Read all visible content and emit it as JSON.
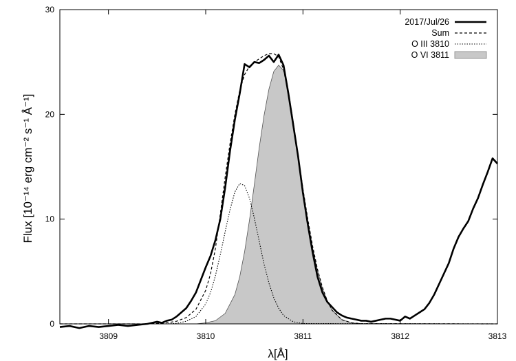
{
  "chart_data": {
    "type": "line",
    "xlabel": "λ[Å]",
    "ylabel": "Flux [10⁻¹⁴ erg cm⁻² s⁻¹ Å⁻¹]",
    "xlim": [
      3808.5,
      3813
    ],
    "ylim": [
      0,
      30
    ],
    "x_ticks": [
      3809,
      3810,
      3811,
      3812,
      3813
    ],
    "y_ticks": [
      0,
      10,
      20,
      30
    ],
    "grid": false,
    "legend_position": "top-right",
    "series": [
      {
        "name": "2017/Jul/26",
        "style": "solid-thick",
        "color": "#000000",
        "points": [
          [
            3808.5,
            -0.3
          ],
          [
            3808.6,
            -0.2
          ],
          [
            3808.7,
            -0.4
          ],
          [
            3808.8,
            -0.2
          ],
          [
            3808.9,
            -0.3
          ],
          [
            3809.0,
            -0.2
          ],
          [
            3809.1,
            -0.1
          ],
          [
            3809.2,
            -0.2
          ],
          [
            3809.3,
            -0.1
          ],
          [
            3809.4,
            0.0
          ],
          [
            3809.5,
            0.2
          ],
          [
            3809.55,
            0.1
          ],
          [
            3809.6,
            0.3
          ],
          [
            3809.65,
            0.4
          ],
          [
            3809.7,
            0.7
          ],
          [
            3809.75,
            1.1
          ],
          [
            3809.8,
            1.5
          ],
          [
            3809.85,
            2.2
          ],
          [
            3809.9,
            3.0
          ],
          [
            3809.95,
            4.2
          ],
          [
            3810.0,
            5.4
          ],
          [
            3810.05,
            6.5
          ],
          [
            3810.1,
            8.0
          ],
          [
            3810.15,
            10.0
          ],
          [
            3810.2,
            13.0
          ],
          [
            3810.25,
            16.5
          ],
          [
            3810.3,
            19.5
          ],
          [
            3810.35,
            22.0
          ],
          [
            3810.4,
            24.8
          ],
          [
            3810.45,
            24.5
          ],
          [
            3810.5,
            25.0
          ],
          [
            3810.55,
            24.9
          ],
          [
            3810.6,
            25.2
          ],
          [
            3810.65,
            25.6
          ],
          [
            3810.7,
            25.0
          ],
          [
            3810.75,
            25.7
          ],
          [
            3810.8,
            24.7
          ],
          [
            3810.85,
            22.0
          ],
          [
            3810.9,
            19.0
          ],
          [
            3810.95,
            16.0
          ],
          [
            3811.0,
            12.5
          ],
          [
            3811.05,
            9.5
          ],
          [
            3811.1,
            6.8
          ],
          [
            3811.15,
            4.5
          ],
          [
            3811.2,
            3.0
          ],
          [
            3811.25,
            2.1
          ],
          [
            3811.3,
            1.6
          ],
          [
            3811.35,
            1.1
          ],
          [
            3811.4,
            0.8
          ],
          [
            3811.45,
            0.6
          ],
          [
            3811.5,
            0.5
          ],
          [
            3811.55,
            0.4
          ],
          [
            3811.6,
            0.3
          ],
          [
            3811.65,
            0.3
          ],
          [
            3811.7,
            0.2
          ],
          [
            3811.75,
            0.3
          ],
          [
            3811.8,
            0.4
          ],
          [
            3811.85,
            0.5
          ],
          [
            3811.9,
            0.5
          ],
          [
            3811.95,
            0.4
          ],
          [
            3812.0,
            0.3
          ],
          [
            3812.05,
            0.7
          ],
          [
            3812.1,
            0.5
          ],
          [
            3812.15,
            0.8
          ],
          [
            3812.2,
            1.1
          ],
          [
            3812.25,
            1.4
          ],
          [
            3812.3,
            2.0
          ],
          [
            3812.35,
            2.8
          ],
          [
            3812.4,
            3.8
          ],
          [
            3812.45,
            4.8
          ],
          [
            3812.5,
            5.8
          ],
          [
            3812.55,
            7.2
          ],
          [
            3812.6,
            8.3
          ],
          [
            3812.65,
            9.1
          ],
          [
            3812.7,
            9.8
          ],
          [
            3812.75,
            11.0
          ],
          [
            3812.8,
            12.0
          ],
          [
            3812.85,
            13.3
          ],
          [
            3812.9,
            14.5
          ],
          [
            3812.95,
            15.8
          ],
          [
            3813.0,
            15.3
          ]
        ]
      },
      {
        "name": "Sum",
        "style": "dashed",
        "color": "#000000",
        "points": [
          [
            3808.5,
            0
          ],
          [
            3809.4,
            0
          ],
          [
            3809.5,
            0.05
          ],
          [
            3809.6,
            0.1
          ],
          [
            3809.7,
            0.25
          ],
          [
            3809.8,
            0.6
          ],
          [
            3809.9,
            1.4
          ],
          [
            3810.0,
            3.2
          ],
          [
            3810.05,
            4.8
          ],
          [
            3810.1,
            7.2
          ],
          [
            3810.15,
            10.5
          ],
          [
            3810.2,
            14.0
          ],
          [
            3810.25,
            17.2
          ],
          [
            3810.3,
            20.0
          ],
          [
            3810.35,
            22.3
          ],
          [
            3810.4,
            23.8
          ],
          [
            3810.45,
            24.6
          ],
          [
            3810.5,
            25.0
          ],
          [
            3810.55,
            25.3
          ],
          [
            3810.6,
            25.6
          ],
          [
            3810.65,
            25.8
          ],
          [
            3810.7,
            25.8
          ],
          [
            3810.75,
            25.5
          ],
          [
            3810.8,
            24.3
          ],
          [
            3810.85,
            22.0
          ],
          [
            3810.9,
            19.2
          ],
          [
            3810.95,
            16.1
          ],
          [
            3811.0,
            12.9
          ],
          [
            3811.05,
            10.0
          ],
          [
            3811.1,
            7.4
          ],
          [
            3811.15,
            5.2
          ],
          [
            3811.2,
            3.5
          ],
          [
            3811.25,
            2.2
          ],
          [
            3811.3,
            1.3
          ],
          [
            3811.4,
            0.4
          ],
          [
            3811.5,
            0.1
          ],
          [
            3811.6,
            0.02
          ],
          [
            3813.0,
            0
          ]
        ]
      },
      {
        "name": "O III 3810",
        "style": "dotted",
        "color": "#000000",
        "points": [
          [
            3808.5,
            0
          ],
          [
            3809.6,
            0
          ],
          [
            3809.7,
            0.05
          ],
          [
            3809.8,
            0.25
          ],
          [
            3809.9,
            0.7
          ],
          [
            3810.0,
            1.9
          ],
          [
            3810.05,
            3.0
          ],
          [
            3810.1,
            4.6
          ],
          [
            3810.15,
            6.6
          ],
          [
            3810.2,
            8.8
          ],
          [
            3810.25,
            10.9
          ],
          [
            3810.3,
            12.6
          ],
          [
            3810.35,
            13.4
          ],
          [
            3810.4,
            13.2
          ],
          [
            3810.45,
            12.0
          ],
          [
            3810.5,
            10.1
          ],
          [
            3810.55,
            7.9
          ],
          [
            3810.6,
            5.7
          ],
          [
            3810.65,
            3.9
          ],
          [
            3810.7,
            2.5
          ],
          [
            3810.75,
            1.5
          ],
          [
            3810.8,
            0.8
          ],
          [
            3810.9,
            0.2
          ],
          [
            3811.0,
            0.03
          ],
          [
            3813.0,
            0
          ]
        ]
      },
      {
        "name": "O VI 3811",
        "style": "filled-area",
        "color": "#c8c8c8",
        "points": [
          [
            3808.5,
            0
          ],
          [
            3809.9,
            0
          ],
          [
            3810.0,
            0.1
          ],
          [
            3810.1,
            0.3
          ],
          [
            3810.2,
            1.0
          ],
          [
            3810.3,
            2.8
          ],
          [
            3810.35,
            4.5
          ],
          [
            3810.4,
            6.9
          ],
          [
            3810.45,
            9.9
          ],
          [
            3810.5,
            13.3
          ],
          [
            3810.55,
            16.8
          ],
          [
            3810.6,
            19.9
          ],
          [
            3810.65,
            22.4
          ],
          [
            3810.7,
            24.1
          ],
          [
            3810.75,
            24.7
          ],
          [
            3810.8,
            24.2
          ],
          [
            3810.85,
            22.3
          ],
          [
            3810.9,
            19.4
          ],
          [
            3810.95,
            16.1
          ],
          [
            3811.0,
            12.8
          ],
          [
            3811.05,
            9.8
          ],
          [
            3811.1,
            7.2
          ],
          [
            3811.15,
            5.1
          ],
          [
            3811.2,
            3.4
          ],
          [
            3811.25,
            2.2
          ],
          [
            3811.3,
            1.3
          ],
          [
            3811.4,
            0.4
          ],
          [
            3811.5,
            0.1
          ],
          [
            3811.6,
            0.02
          ],
          [
            3813.0,
            0
          ]
        ]
      }
    ]
  }
}
